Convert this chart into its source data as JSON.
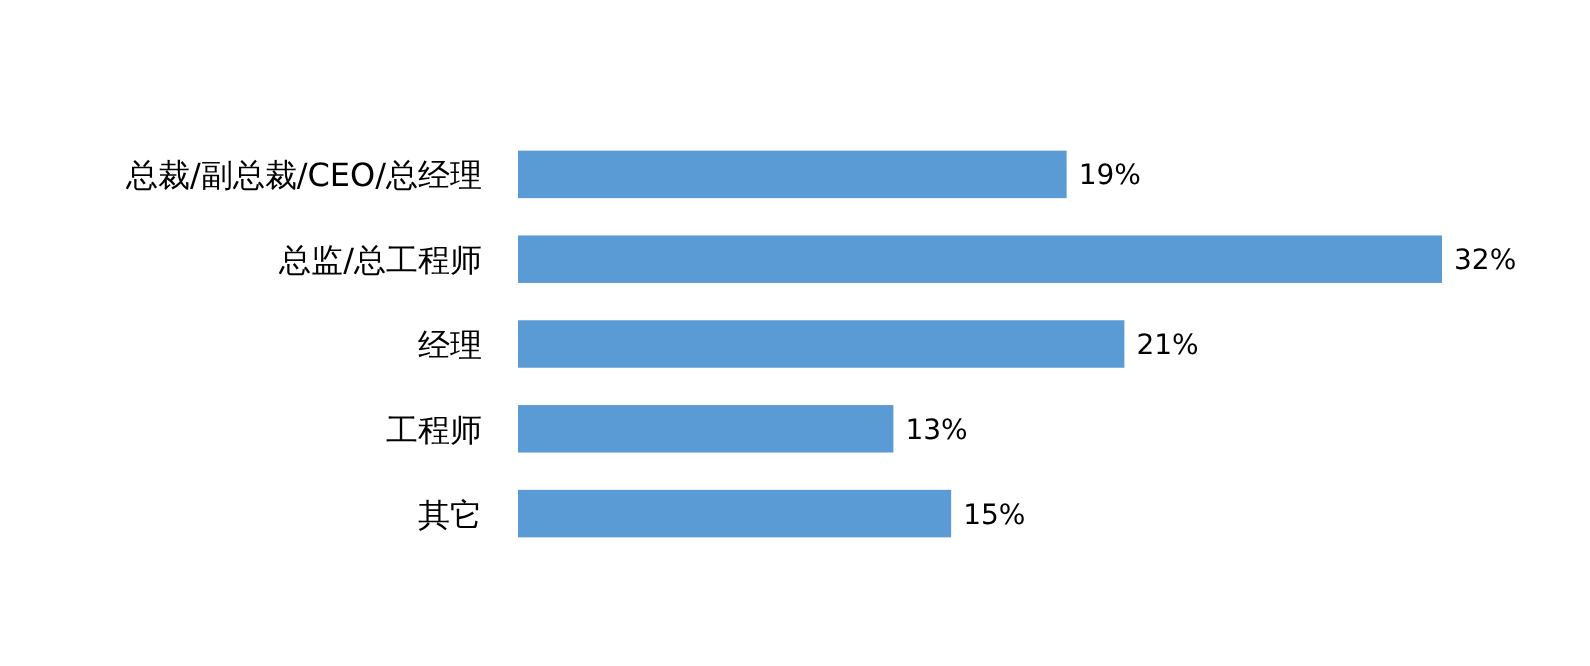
{
  "chart_data": {
    "type": "bar",
    "orientation": "horizontal",
    "categories": [
      "总裁/副总裁/CEO/总经理",
      "总监/总工程师",
      "经理",
      "工程师",
      "其它"
    ],
    "values": [
      19,
      32,
      21,
      13,
      15
    ],
    "value_labels": [
      "19%",
      "32%",
      "21%",
      "13%",
      "15%"
    ],
    "color": "#5b9bd5"
  }
}
